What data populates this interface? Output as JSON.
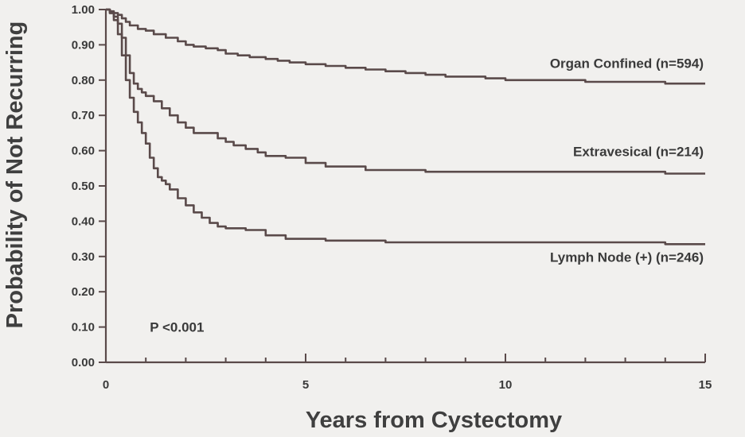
{
  "chart_data": {
    "type": "line",
    "title": "",
    "xlabel": "Years from Cystectomy",
    "ylabel": "Probability of Not Recurring",
    "xlim": [
      0,
      15
    ],
    "ylim": [
      0,
      1
    ],
    "x_ticks": [
      0,
      5,
      10,
      15
    ],
    "x_tick_labels": [
      "0",
      "5",
      "10",
      "15"
    ],
    "x_minor_step": 1,
    "y_ticks": [
      0,
      0.1,
      0.2,
      0.3,
      0.4,
      0.5,
      0.6,
      0.7,
      0.8,
      0.9,
      1.0
    ],
    "y_tick_labels": [
      "0.00",
      "0.10",
      "0.20",
      "0.30",
      "0.40",
      "0.50",
      "0.60",
      "0.70",
      "0.80",
      "0.90",
      "1.00"
    ],
    "grid": false,
    "step": true,
    "line_color": "#5a4a4a",
    "annotations": [
      {
        "text": "P <0.001",
        "x": 1.1,
        "y": 0.1
      }
    ],
    "series": [
      {
        "name": "Organ Confined (n=594)",
        "label_x": 15,
        "label_y": 0.835,
        "x": [
          0,
          0.1,
          0.2,
          0.3,
          0.4,
          0.5,
          0.6,
          0.8,
          1.0,
          1.2,
          1.5,
          1.8,
          2.0,
          2.2,
          2.5,
          2.8,
          3.0,
          3.3,
          3.6,
          4.0,
          4.3,
          4.6,
          5.0,
          5.5,
          6.0,
          6.5,
          7.0,
          7.5,
          8.0,
          8.5,
          9.0,
          9.5,
          10.0,
          11.0,
          12.0,
          13.0,
          14.0,
          15.0
        ],
        "y": [
          1.0,
          0.995,
          0.99,
          0.985,
          0.975,
          0.965,
          0.955,
          0.945,
          0.94,
          0.93,
          0.92,
          0.91,
          0.9,
          0.895,
          0.89,
          0.885,
          0.875,
          0.87,
          0.865,
          0.86,
          0.855,
          0.85,
          0.845,
          0.84,
          0.835,
          0.83,
          0.825,
          0.82,
          0.815,
          0.81,
          0.81,
          0.805,
          0.8,
          0.8,
          0.795,
          0.795,
          0.79,
          0.79
        ]
      },
      {
        "name": "Extravesical (n=214)",
        "label_x": 15,
        "label_y": 0.585,
        "x": [
          0,
          0.1,
          0.2,
          0.3,
          0.4,
          0.5,
          0.6,
          0.7,
          0.8,
          0.9,
          1.0,
          1.2,
          1.4,
          1.6,
          1.8,
          2.0,
          2.2,
          2.5,
          2.8,
          3.0,
          3.2,
          3.5,
          3.8,
          4.0,
          4.5,
          5.0,
          5.5,
          6.0,
          6.5,
          7.0,
          8.0,
          9.0,
          10.0,
          12.0,
          14.0,
          15.0
        ],
        "y": [
          1.0,
          0.99,
          0.98,
          0.96,
          0.92,
          0.87,
          0.82,
          0.79,
          0.775,
          0.765,
          0.755,
          0.74,
          0.72,
          0.7,
          0.68,
          0.665,
          0.65,
          0.65,
          0.635,
          0.625,
          0.615,
          0.605,
          0.595,
          0.585,
          0.58,
          0.565,
          0.555,
          0.555,
          0.545,
          0.545,
          0.54,
          0.54,
          0.54,
          0.54,
          0.535,
          0.535
        ]
      },
      {
        "name": "Lymph Node (+) (n=246)",
        "label_x": 15,
        "label_y": 0.285,
        "x": [
          0,
          0.1,
          0.2,
          0.3,
          0.4,
          0.5,
          0.6,
          0.7,
          0.8,
          0.9,
          1.0,
          1.1,
          1.2,
          1.3,
          1.4,
          1.5,
          1.6,
          1.8,
          2.0,
          2.2,
          2.4,
          2.6,
          2.8,
          3.0,
          3.5,
          4.0,
          4.5,
          5.0,
          5.5,
          6.0,
          7.0,
          8.0,
          9.0,
          10.0,
          12.0,
          14.0,
          15.0
        ],
        "y": [
          1.0,
          0.99,
          0.97,
          0.93,
          0.87,
          0.8,
          0.75,
          0.71,
          0.68,
          0.65,
          0.62,
          0.58,
          0.55,
          0.525,
          0.515,
          0.505,
          0.49,
          0.465,
          0.445,
          0.425,
          0.41,
          0.395,
          0.385,
          0.38,
          0.375,
          0.36,
          0.35,
          0.35,
          0.345,
          0.345,
          0.34,
          0.34,
          0.34,
          0.34,
          0.34,
          0.335,
          0.335
        ]
      }
    ]
  }
}
